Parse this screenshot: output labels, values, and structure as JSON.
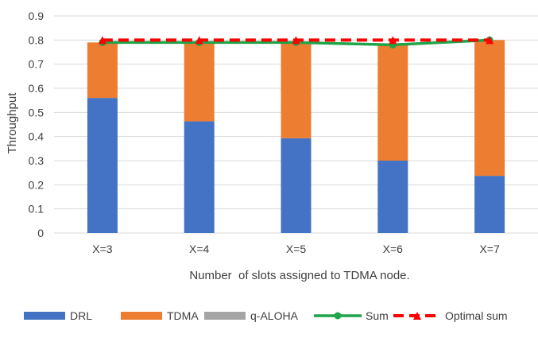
{
  "chart_data": {
    "type": "bar",
    "stacked": true,
    "categories": [
      "X=3",
      "X=4",
      "X=5",
      "X=6",
      "X=7"
    ],
    "series": [
      {
        "name": "DRL",
        "kind": "bar",
        "color": "#4472C4",
        "values": [
          0.56,
          0.463,
          0.393,
          0.3,
          0.237
        ]
      },
      {
        "name": "TDMA",
        "kind": "bar",
        "color": "#ED7D31",
        "values": [
          0.23,
          0.33,
          0.4,
          0.48,
          0.563
        ]
      },
      {
        "name": "q-ALOHA",
        "kind": "bar",
        "color": "#A5A5A5",
        "values": [
          0,
          0,
          0,
          0,
          0
        ]
      },
      {
        "name": "Sum",
        "kind": "line",
        "color": "#1EA449",
        "marker": "circle",
        "values": [
          0.79,
          0.79,
          0.79,
          0.78,
          0.8
        ]
      },
      {
        "name": "Optimal sum",
        "kind": "line",
        "color": "#FF0000",
        "marker": "triangle",
        "dashed": true,
        "values": [
          0.8,
          0.8,
          0.8,
          0.8,
          0.8
        ]
      }
    ],
    "xlabel": "Number  of slots assigned to TDMA node.",
    "ylabel": "Throughput",
    "ylim": [
      0,
      0.9
    ],
    "yticks": [
      "0",
      "0.1",
      "0.2",
      "0.3",
      "0.4",
      "0.5",
      "0.6",
      "0.7",
      "0.8",
      "0.9"
    ],
    "grid": true,
    "legend": "bottom"
  }
}
